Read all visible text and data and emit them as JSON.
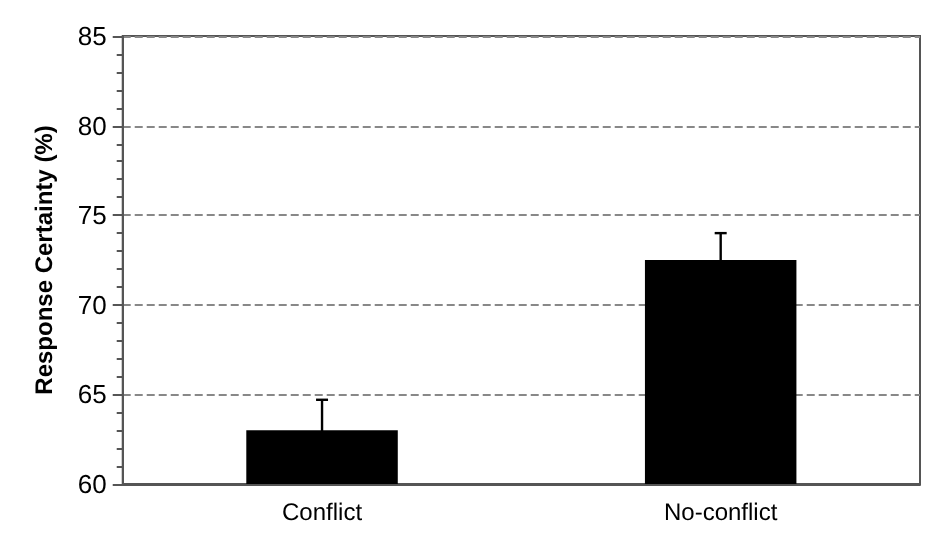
{
  "chart_data": {
    "type": "bar",
    "ylabel": "Response Certainty (%)",
    "categories": [
      "Conflict",
      "No-conflict"
    ],
    "values": [
      63.0,
      72.5
    ],
    "color": "#000000",
    "errors": [
      1.7,
      1.5
    ],
    "ylim": [
      60,
      85
    ],
    "yticks": [
      60,
      65,
      70,
      75,
      80,
      85
    ],
    "grid": "y"
  }
}
